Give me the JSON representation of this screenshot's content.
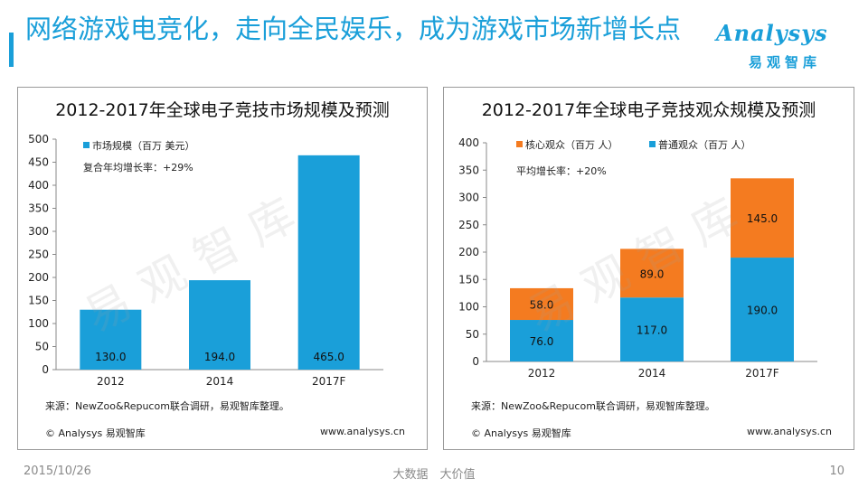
{
  "header": {
    "title": "网络游戏电竞化，走向全民娱乐，成为游戏市场新增长点",
    "logo_word": "Analysys",
    "logo_cn": "易观智库"
  },
  "watermark": "易观智库",
  "charts": [
    {
      "panel_title": "2012-2017年全球电子竞技市场规模及预测",
      "source": "来源：NewZoo&Repucom联合调研，易观智库整理。",
      "copyright": "© Analysys 易观智库",
      "website": "www.analysys.cn"
    },
    {
      "panel_title": "2012-2017年全球电子竞技观众规模及预测",
      "source": "来源：NewZoo&Repucom联合调研，易观智库整理。",
      "copyright": "© Analysys 易观智库",
      "website": "www.analysys.cn"
    }
  ],
  "chart_data": [
    {
      "type": "bar",
      "title": "2012-2017年全球电子竞技市场规模及预测",
      "categories": [
        "2012",
        "2014",
        "2017F"
      ],
      "series": [
        {
          "name": "市场规模（百万 美元）",
          "values": [
            130.0,
            194.0,
            465.0
          ],
          "labels": [
            "130.0",
            "194.0",
            "465.0"
          ],
          "color": "#1a9fd9"
        }
      ],
      "annotation": "复合年均增长率：+29%",
      "yticks": [
        "500",
        "450",
        "400",
        "350",
        "300",
        "250",
        "200",
        "150",
        "100",
        "50",
        "0"
      ],
      "ylim": [
        0,
        500
      ]
    },
    {
      "type": "bar",
      "stacked": true,
      "title": "2012-2017年全球电子竞技观众规模及预测",
      "categories": [
        "2012",
        "2014",
        "2017F"
      ],
      "series": [
        {
          "name": "普通观众（百万 人）",
          "values": [
            76.0,
            117.0,
            190.0
          ],
          "labels": [
            "76.0",
            "117.0",
            "190.0"
          ],
          "color": "#1a9fd9"
        },
        {
          "name": "核心观众（百万 人）",
          "values": [
            58.0,
            89.0,
            145.0
          ],
          "labels": [
            "58.0",
            "89.0",
            "145.0"
          ],
          "color": "#f47b20"
        }
      ],
      "legend_order": [
        1,
        0
      ],
      "annotation": "平均增长率：+20%",
      "yticks": [
        "400",
        "350",
        "300",
        "250",
        "200",
        "150",
        "100",
        "50",
        "0"
      ],
      "ylim": [
        0,
        400
      ]
    }
  ],
  "footer": {
    "date": "2015/10/26",
    "slogan": "大数据　大价值",
    "page": "10"
  }
}
